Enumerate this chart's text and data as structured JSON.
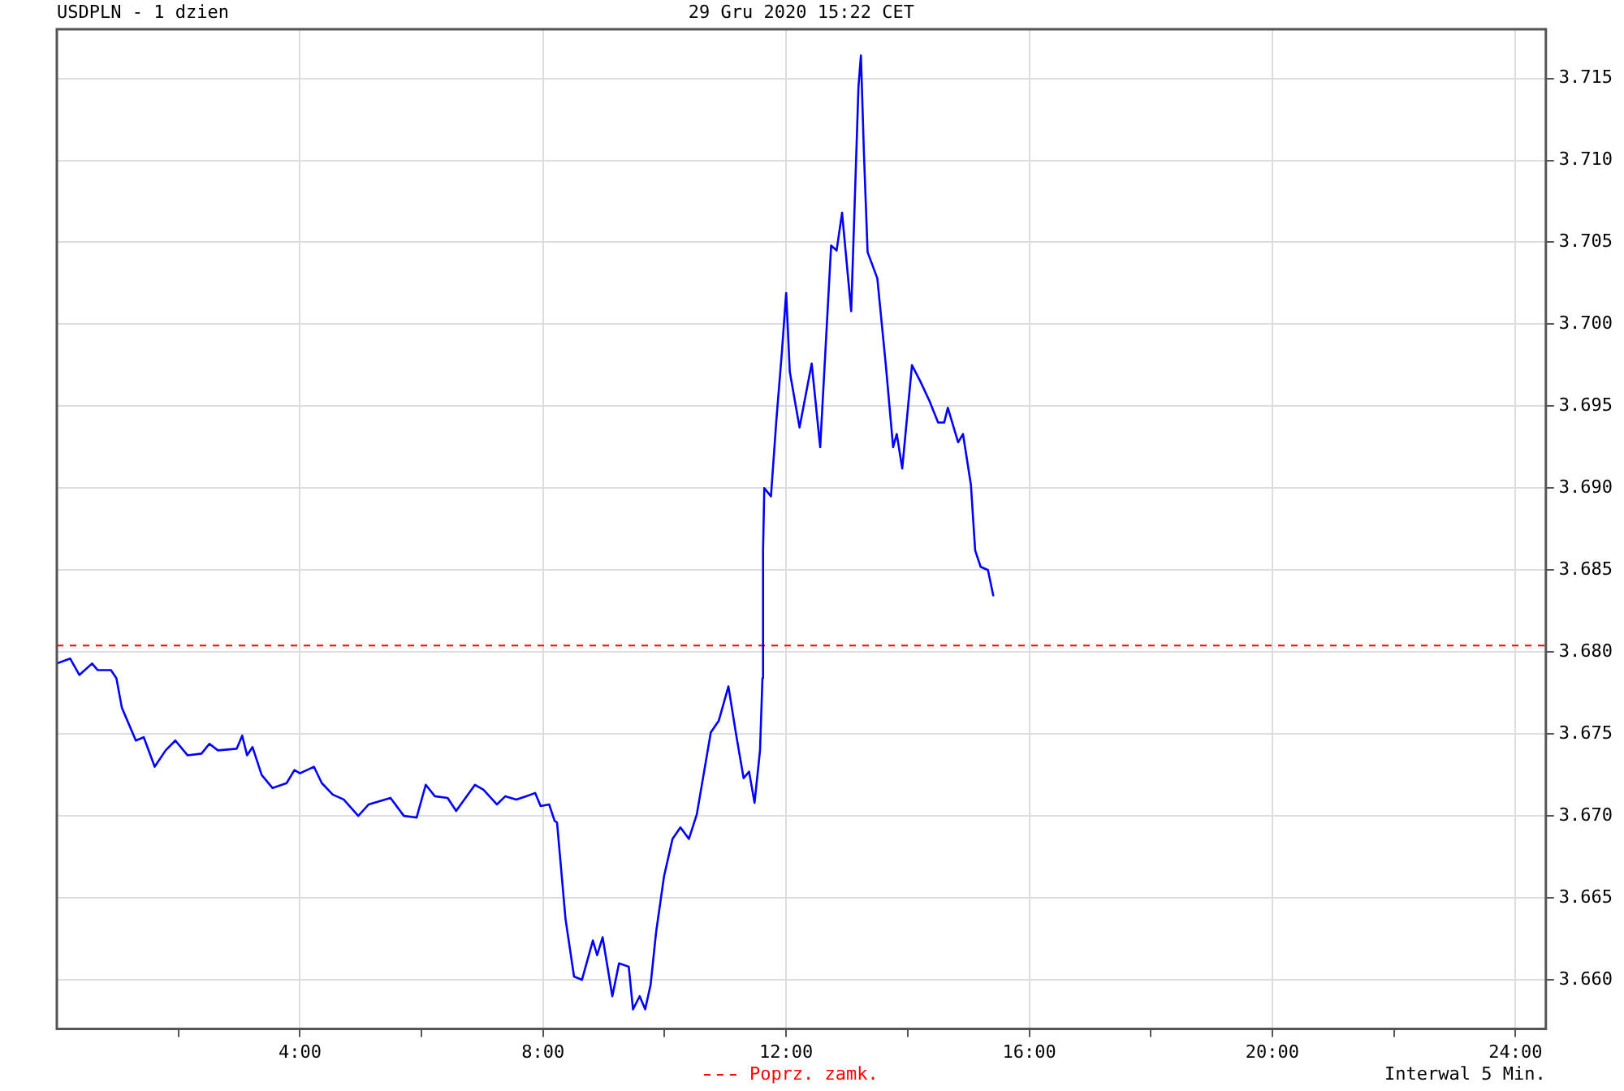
{
  "chart_data": {
    "type": "line",
    "title": "USDPLN - 1 dzien",
    "subtitle": "29 Gru 2020 15:22 CET",
    "annotations": [
      "Interwal 5 Min."
    ],
    "x": [
      0,
      0.22,
      0.37,
      0.58,
      0.67,
      0.89,
      0.98,
      1.07,
      1.3,
      1.43,
      1.61,
      1.79,
      1.95,
      2.15,
      2.38,
      2.51,
      2.65,
      2.96,
      3.05,
      3.13,
      3.22,
      3.37,
      3.55,
      3.78,
      3.91,
      4.0,
      4.23,
      4.36,
      4.54,
      4.72,
      4.96,
      5.13,
      5.49,
      5.71,
      5.92,
      6.07,
      6.22,
      6.43,
      6.57,
      6.88,
      7.02,
      7.24,
      7.38,
      7.56,
      7.72,
      7.87,
      7.96,
      8.1,
      8.19,
      8.23,
      8.37,
      8.51,
      8.64,
      8.82,
      8.89,
      8.98,
      9.14,
      9.25,
      9.41,
      9.48,
      9.59,
      9.68,
      9.77,
      9.86,
      9.99,
      10.13,
      10.26,
      10.4,
      10.53,
      10.76,
      10.89,
      11.05,
      11.18,
      11.3,
      11.39,
      11.48,
      11.57,
      11.61,
      11.62,
      11.64,
      11.75,
      11.84,
      11.93,
      12.0,
      12.06,
      12.22,
      12.42,
      12.56,
      12.74,
      12.83,
      12.92,
      13.07,
      13.19,
      13.23,
      13.28,
      13.34,
      13.5,
      13.64,
      13.76,
      13.82,
      13.91,
      14.07,
      14.21,
      14.36,
      14.5,
      14.6,
      14.66,
      14.83,
      14.91,
      15.04,
      15.11,
      15.2,
      15.32,
      15.41
    ],
    "series": [
      {
        "color": "#0000ff",
        "values": [
          3.6793,
          3.6796,
          3.6786,
          3.6793,
          3.6789,
          3.6789,
          3.6784,
          3.6766,
          3.6746,
          3.6748,
          3.673,
          3.674,
          3.6746,
          3.6737,
          3.6738,
          3.6744,
          3.674,
          3.6741,
          3.6749,
          3.6737,
          3.6742,
          3.6725,
          3.6717,
          3.672,
          3.6728,
          3.6726,
          3.673,
          3.672,
          3.6713,
          3.671,
          3.67,
          3.6707,
          3.6711,
          3.67,
          3.6699,
          3.6719,
          3.6712,
          3.6711,
          3.6703,
          3.6719,
          3.6716,
          3.6707,
          3.6712,
          3.671,
          3.6712,
          3.6714,
          3.6706,
          3.6707,
          3.6697,
          3.6696,
          3.6637,
          3.6602,
          3.66,
          3.6624,
          3.6615,
          3.6626,
          3.659,
          3.661,
          3.6608,
          3.6582,
          3.659,
          3.6582,
          3.6597,
          3.6629,
          3.6663,
          3.6686,
          3.6693,
          3.6686,
          3.6701,
          3.6751,
          3.6758,
          3.6779,
          3.6749,
          3.6723,
          3.6727,
          3.6708,
          3.674,
          3.6784,
          3.6862,
          3.69,
          3.6895,
          3.6942,
          3.6983,
          3.7019,
          3.6971,
          3.6937,
          3.6976,
          3.6925,
          3.7048,
          3.7045,
          3.7068,
          3.7008,
          3.7145,
          3.7164,
          3.7104,
          3.7044,
          3.7028,
          3.6975,
          3.6925,
          3.6933,
          3.6912,
          3.6975,
          3.6965,
          3.6953,
          3.694,
          3.694,
          3.6949,
          3.6928,
          3.6933,
          3.6902,
          3.6862,
          3.6852,
          3.685,
          3.6834
        ]
      }
    ],
    "xlim": [
      0,
      24.5
    ],
    "xticks": [
      {
        "value": 2,
        "label": null
      },
      {
        "value": 4,
        "label": "4:00"
      },
      {
        "value": 6,
        "label": null
      },
      {
        "value": 8,
        "label": "8:00"
      },
      {
        "value": 10,
        "label": null
      },
      {
        "value": 12,
        "label": "12:00"
      },
      {
        "value": 14,
        "label": null
      },
      {
        "value": 16,
        "label": "16:00"
      },
      {
        "value": 18,
        "label": null
      },
      {
        "value": 20,
        "label": "20:00"
      },
      {
        "value": 22,
        "label": null
      },
      {
        "value": 24,
        "label": "24:00"
      }
    ],
    "ylim": [
      3.657,
      3.718
    ],
    "yticks": [
      {
        "value": 3.66,
        "label": "3.660"
      },
      {
        "value": 3.665,
        "label": "3.665"
      },
      {
        "value": 3.67,
        "label": "3.670"
      },
      {
        "value": 3.675,
        "label": "3.675"
      },
      {
        "value": 3.68,
        "label": "3.680"
      },
      {
        "value": 3.685,
        "label": "3.685"
      },
      {
        "value": 3.69,
        "label": "3.690"
      },
      {
        "value": 3.695,
        "label": "3.695"
      },
      {
        "value": 3.7,
        "label": "3.700"
      },
      {
        "value": 3.705,
        "label": "3.705"
      },
      {
        "value": 3.71,
        "label": "3.710"
      },
      {
        "value": 3.715,
        "label": "3.715"
      }
    ],
    "ref_lines": [
      {
        "axis": "y",
        "value": 3.6804,
        "label": "Poprz. zamk.",
        "color": "#ff0000",
        "line_style": "dashed"
      }
    ],
    "grid": true,
    "marker": "none",
    "line_style": "solid",
    "legend": "bottom"
  }
}
